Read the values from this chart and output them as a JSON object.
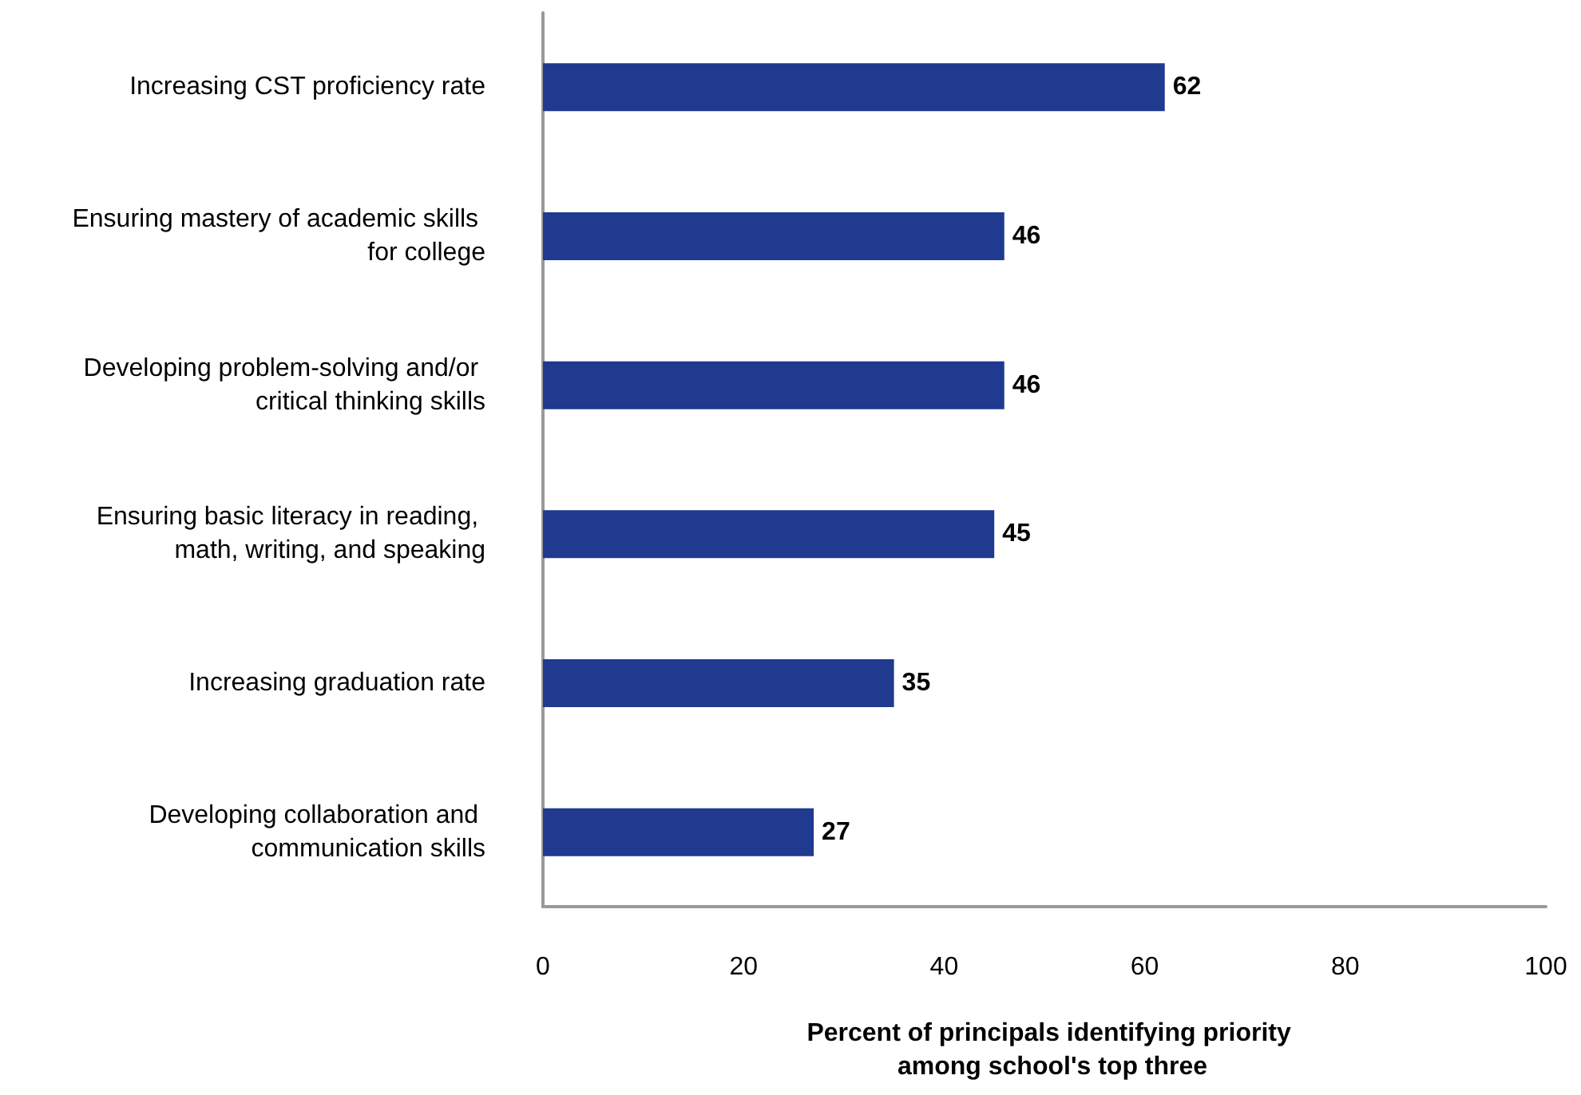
{
  "chart_data": {
    "type": "bar",
    "orientation": "horizontal",
    "xlabel": "Percent of principals identifying priority among school's top three",
    "categories": [
      "Increasing CST proficiency rate",
      "Ensuring mastery of academic skills for college",
      "Developing problem-solving and/or critical thinking skills",
      "Ensuring basic literacy in reading, math, writing, and speaking",
      "Increasing graduation rate",
      "Developing collaboration and communication skills"
    ],
    "values": [
      62,
      46,
      46,
      45,
      35,
      27
    ],
    "color": "#1f3a8f",
    "data_labels": true,
    "xlim": [
      0,
      100
    ],
    "xticks": [
      0,
      20,
      40,
      60,
      80,
      100
    ],
    "grid": false
  }
}
